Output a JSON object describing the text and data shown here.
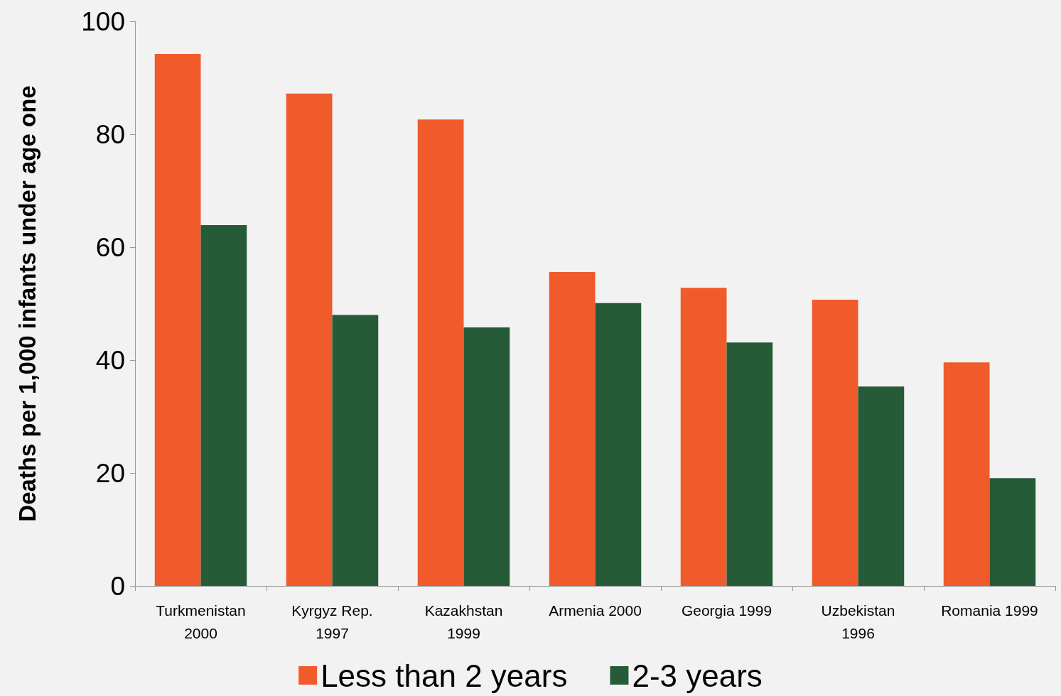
{
  "chart_data": {
    "type": "bar",
    "ylabel": "Deaths per 1,000 infants under age one",
    "categories": [
      "Turkmenistan\n2000",
      "Kyrgyz Rep.\n1997",
      "Kazakhstan\n1999",
      "Armenia 2000",
      "Georgia 1999",
      "Uzbekistan\n1996",
      "Romania 1999"
    ],
    "series": [
      {
        "name": "Less than 2 years",
        "color": "#f15a2b",
        "values": [
          94.2,
          87.2,
          82.6,
          55.6,
          52.8,
          50.7,
          39.6
        ]
      },
      {
        "name": "2-3 years",
        "color": "#265b38",
        "values": [
          63.9,
          48.0,
          45.8,
          50.1,
          43.1,
          35.3,
          19.1
        ]
      }
    ],
    "ylim": [
      0,
      100
    ],
    "yticks": [
      0,
      20,
      40,
      60,
      80,
      100
    ],
    "grid": false,
    "legend": "bottom"
  }
}
